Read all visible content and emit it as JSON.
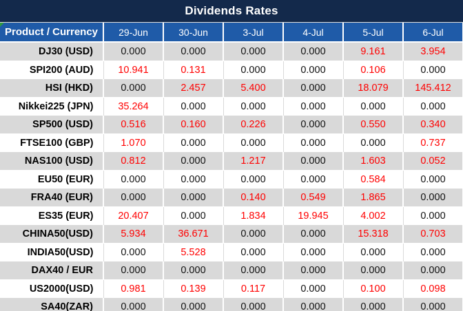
{
  "title": "Dividends Rates",
  "colors": {
    "title_bg": "#13294B",
    "header_bg": "#1F5BA8",
    "row_alt_bg": "#D9D9D9",
    "value_red": "#FF0000",
    "value_black": "#111111",
    "corner_marker_green": "#2E9B3E"
  },
  "table": {
    "product_header": "Product / Currency",
    "date_headers": [
      "29-Jun",
      "30-Jun",
      "3-Jul",
      "4-Jul",
      "5-Jul",
      "6-Jul"
    ],
    "rows": [
      {
        "product": "DJ30 (USD)",
        "values": [
          "0.000",
          "0.000",
          "0.000",
          "0.000",
          "9.161",
          "3.954"
        ],
        "red": [
          false,
          false,
          false,
          false,
          true,
          true
        ]
      },
      {
        "product": "SPI200 (AUD)",
        "values": [
          "10.941",
          "0.131",
          "0.000",
          "0.000",
          "0.106",
          "0.000"
        ],
        "red": [
          true,
          true,
          false,
          false,
          true,
          false
        ]
      },
      {
        "product": "HSI (HKD)",
        "values": [
          "0.000",
          "2.457",
          "5.400",
          "0.000",
          "18.079",
          "145.412"
        ],
        "red": [
          false,
          true,
          true,
          false,
          true,
          true
        ]
      },
      {
        "product": "Nikkei225 (JPN)",
        "values": [
          "35.264",
          "0.000",
          "0.000",
          "0.000",
          "0.000",
          "0.000"
        ],
        "red": [
          true,
          false,
          false,
          false,
          false,
          false
        ]
      },
      {
        "product": "SP500 (USD)",
        "values": [
          "0.516",
          "0.160",
          "0.226",
          "0.000",
          "0.550",
          "0.340"
        ],
        "red": [
          true,
          true,
          true,
          false,
          true,
          true
        ]
      },
      {
        "product": "FTSE100 (GBP)",
        "values": [
          "1.070",
          "0.000",
          "0.000",
          "0.000",
          "0.000",
          "0.737"
        ],
        "red": [
          true,
          false,
          false,
          false,
          false,
          true
        ]
      },
      {
        "product": "NAS100 (USD)",
        "values": [
          "0.812",
          "0.000",
          "1.217",
          "0.000",
          "1.603",
          "0.052"
        ],
        "red": [
          true,
          false,
          true,
          false,
          true,
          true
        ]
      },
      {
        "product": "EU50 (EUR)",
        "values": [
          "0.000",
          "0.000",
          "0.000",
          "0.000",
          "0.584",
          "0.000"
        ],
        "red": [
          false,
          false,
          false,
          false,
          true,
          false
        ]
      },
      {
        "product": "FRA40 (EUR)",
        "values": [
          "0.000",
          "0.000",
          "0.140",
          "0.549",
          "1.865",
          "0.000"
        ],
        "red": [
          false,
          false,
          true,
          true,
          true,
          false
        ]
      },
      {
        "product": "ES35 (EUR)",
        "values": [
          "20.407",
          "0.000",
          "1.834",
          "19.945",
          "4.002",
          "0.000"
        ],
        "red": [
          true,
          false,
          true,
          true,
          true,
          false
        ]
      },
      {
        "product": "CHINA50(USD)",
        "values": [
          "5.934",
          "36.671",
          "0.000",
          "0.000",
          "15.318",
          "0.703"
        ],
        "red": [
          true,
          true,
          false,
          false,
          true,
          true
        ]
      },
      {
        "product": "INDIA50(USD)",
        "values": [
          "0.000",
          "5.528",
          "0.000",
          "0.000",
          "0.000",
          "0.000"
        ],
        "red": [
          false,
          true,
          false,
          false,
          false,
          false
        ]
      },
      {
        "product": "DAX40 / EUR",
        "values": [
          "0.000",
          "0.000",
          "0.000",
          "0.000",
          "0.000",
          "0.000"
        ],
        "red": [
          false,
          false,
          false,
          false,
          false,
          false
        ]
      },
      {
        "product": "US2000(USD)",
        "values": [
          "0.981",
          "0.139",
          "0.117",
          "0.000",
          "0.100",
          "0.098"
        ],
        "red": [
          true,
          true,
          true,
          false,
          true,
          true
        ]
      },
      {
        "product": "SA40(ZAR)",
        "values": [
          "0.000",
          "0.000",
          "0.000",
          "0.000",
          "0.000",
          "0.000"
        ],
        "red": [
          false,
          false,
          false,
          false,
          false,
          false
        ]
      }
    ]
  }
}
